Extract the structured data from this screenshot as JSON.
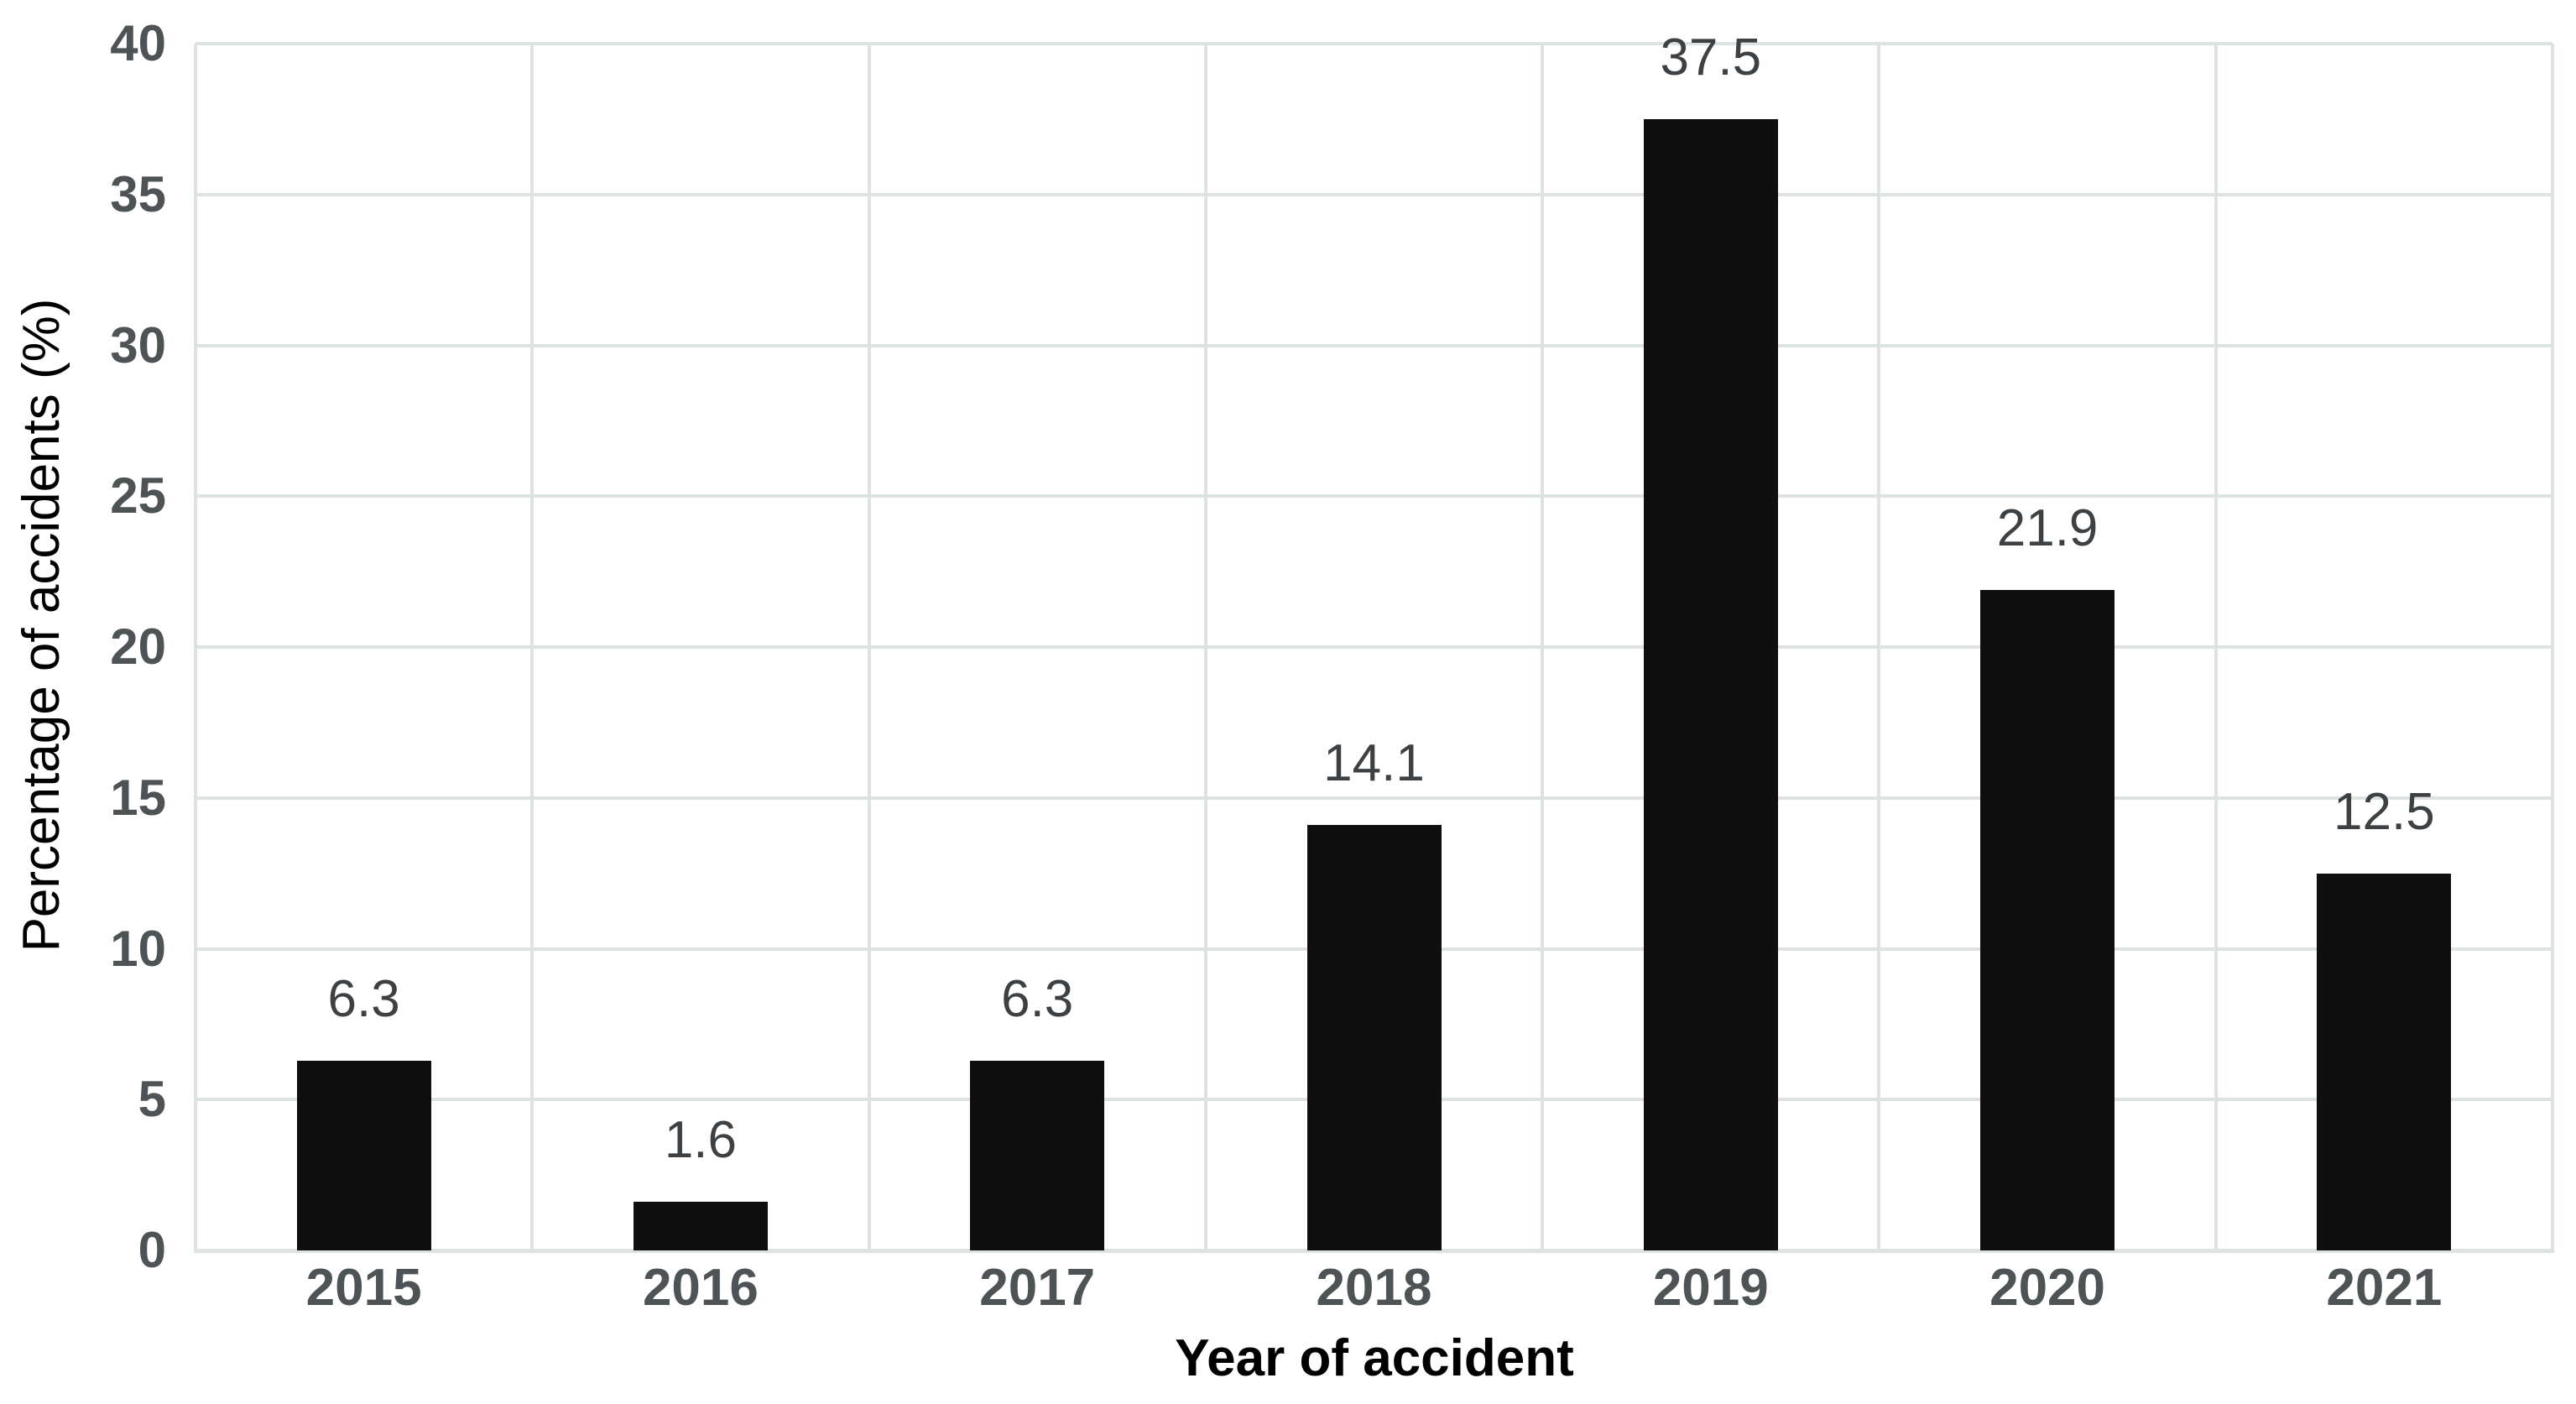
{
  "chart_data": {
    "type": "bar",
    "title": "",
    "categories": [
      "2015",
      "2016",
      "2017",
      "2018",
      "2019",
      "2020",
      "2021"
    ],
    "values": [
      6.3,
      1.6,
      6.3,
      14.1,
      37.5,
      21.9,
      12.5
    ],
    "data_labels": [
      "6.3",
      "1.6",
      "6.3",
      "14.1",
      "37.5",
      "21.9",
      "12.5"
    ],
    "xlabel": "Year of accident",
    "ylabel": "Percentage of accidents (%)",
    "ylim": [
      0,
      40
    ],
    "ytick_step": 5,
    "yticks": [
      0,
      5,
      10,
      15,
      20,
      25,
      30,
      35,
      40
    ],
    "ytick_labels": [
      "0",
      "5",
      "10",
      "15",
      "20",
      "25",
      "30",
      "35",
      "40"
    ],
    "grid": "horizontal gridlines every 5 units; vertical gridlines at category boundaries; full plot border",
    "legend": "none",
    "colors": {
      "bar": "#0f0f10",
      "gridline": "#dde2e3",
      "tick_label": "#4e5356",
      "data_label": "#3d4144",
      "axis_title": "#000000",
      "background": "#ffffff"
    }
  }
}
